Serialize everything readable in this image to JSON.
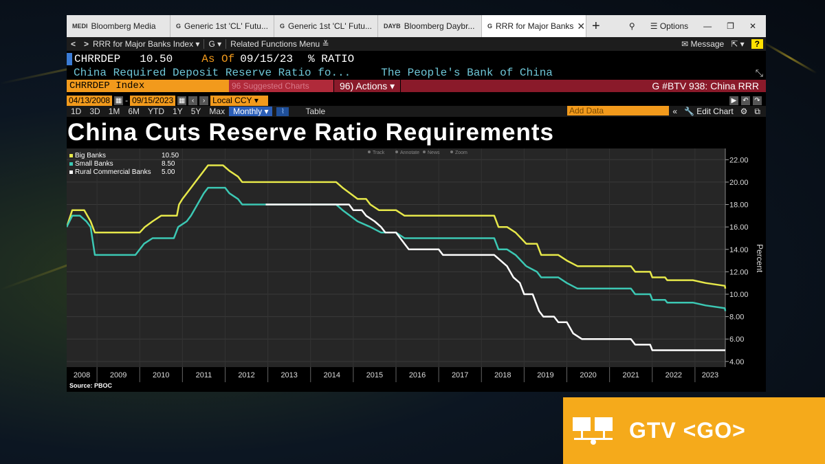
{
  "tabs": [
    {
      "prefix": "MEDI",
      "label": "Bloomberg Media"
    },
    {
      "prefix": "G",
      "label": "Generic 1st 'CL' Futu..."
    },
    {
      "prefix": "G",
      "label": "Generic 1st 'CL' Futu..."
    },
    {
      "prefix": "DAYB",
      "label": "Bloomberg Daybr..."
    },
    {
      "prefix": "G",
      "label": "RRR for Major Banks"
    }
  ],
  "window": {
    "options_label": "Options"
  },
  "toolbar": {
    "security": "RRR for Major Banks Index",
    "g_label": "G",
    "related": "Related Functions Menu",
    "message": "Message",
    "help": "?"
  },
  "quote": {
    "ticker": "CHRRDEP",
    "value": "10.50",
    "asof_label": "As Of",
    "asof_date": "09/15/23",
    "unit": "% RATIO",
    "description": "China Required Deposit Reserve Ratio fo...",
    "source_name": "The People's Bank of China"
  },
  "commandbar": {
    "index": "CHRRDEP Index",
    "related": "96 Suggested Charts",
    "actions": "96) Actions",
    "right": "G #BTV 938: China RRR"
  },
  "daterange": {
    "start": "04/13/2008",
    "end": "09/15/2023",
    "currency": "Local CCY"
  },
  "periods": [
    "1D",
    "3D",
    "1M",
    "6M",
    "YTD",
    "1Y",
    "5Y",
    "Max"
  ],
  "frequency": "Monthly",
  "table_label": "Table",
  "add_data": "Add Data",
  "edit_chart": "Edit Chart",
  "chart_title": "China Cuts Reserve Ratio Requirements",
  "source_note": "Source: PBOC",
  "chart_tools": [
    "Track",
    "Annotate",
    "News",
    "Zoom"
  ],
  "colors": {
    "big": "#e6e84a",
    "small": "#3cc8b4",
    "rural": "#ffffff"
  },
  "chart_data": {
    "type": "line",
    "ylabel": "Percent",
    "ylim": [
      3.5,
      23
    ],
    "xlim": [
      2008.29,
      2023.71
    ],
    "y_ticks": [
      "22.00",
      "20.00",
      "18.00",
      "16.00",
      "14.00",
      "12.00",
      "10.00",
      "8.00",
      "6.00",
      "4.00"
    ],
    "x_ticks": [
      "2008",
      "2009",
      "2010",
      "2011",
      "2012",
      "2013",
      "2014",
      "2015",
      "2016",
      "2017",
      "2018",
      "2019",
      "2020",
      "2021",
      "2022",
      "2023"
    ],
    "legend_position": "top-left",
    "series": [
      {
        "name": "Big Banks",
        "last": "10.50",
        "points": [
          [
            2008.29,
            16.0
          ],
          [
            2008.42,
            17.5
          ],
          [
            2008.7,
            17.5
          ],
          [
            2008.85,
            16.5
          ],
          [
            2008.95,
            15.5
          ],
          [
            2010.0,
            15.5
          ],
          [
            2010.12,
            16.0
          ],
          [
            2010.3,
            16.5
          ],
          [
            2010.5,
            17.0
          ],
          [
            2010.87,
            17.0
          ],
          [
            2010.92,
            18.0
          ],
          [
            2011.0,
            18.5
          ],
          [
            2011.1,
            19.0
          ],
          [
            2011.2,
            19.5
          ],
          [
            2011.3,
            20.0
          ],
          [
            2011.4,
            20.5
          ],
          [
            2011.5,
            21.0
          ],
          [
            2011.6,
            21.5
          ],
          [
            2011.95,
            21.5
          ],
          [
            2012.1,
            21.0
          ],
          [
            2012.3,
            20.5
          ],
          [
            2012.4,
            20.0
          ],
          [
            2014.6,
            20.0
          ],
          [
            2014.75,
            19.5
          ],
          [
            2015.1,
            18.5
          ],
          [
            2015.3,
            18.5
          ],
          [
            2015.4,
            18.0
          ],
          [
            2015.6,
            17.5
          ],
          [
            2016.0,
            17.5
          ],
          [
            2016.2,
            17.0
          ],
          [
            2018.3,
            17.0
          ],
          [
            2018.4,
            16.0
          ],
          [
            2018.6,
            16.0
          ],
          [
            2018.8,
            15.5
          ],
          [
            2019.05,
            14.5
          ],
          [
            2019.3,
            14.5
          ],
          [
            2019.4,
            13.5
          ],
          [
            2019.8,
            13.5
          ],
          [
            2020.0,
            13.0
          ],
          [
            2020.25,
            12.5
          ],
          [
            2020.5,
            12.5
          ],
          [
            2021.5,
            12.5
          ],
          [
            2021.6,
            12.0
          ],
          [
            2021.95,
            12.0
          ],
          [
            2022.0,
            11.5
          ],
          [
            2022.3,
            11.5
          ],
          [
            2022.35,
            11.25
          ],
          [
            2022.95,
            11.25
          ],
          [
            2023.25,
            11.0
          ],
          [
            2023.7,
            10.75
          ],
          [
            2023.71,
            10.5
          ]
        ]
      },
      {
        "name": "Small Banks",
        "last": "8.50",
        "points": [
          [
            2008.29,
            16.0
          ],
          [
            2008.42,
            17.0
          ],
          [
            2008.6,
            17.0
          ],
          [
            2008.75,
            16.5
          ],
          [
            2008.85,
            16.0
          ],
          [
            2008.95,
            13.5
          ],
          [
            2009.9,
            13.5
          ],
          [
            2010.1,
            14.5
          ],
          [
            2010.3,
            15.0
          ],
          [
            2010.8,
            15.0
          ],
          [
            2010.9,
            16.0
          ],
          [
            2011.1,
            16.5
          ],
          [
            2011.2,
            17.0
          ],
          [
            2011.35,
            18.0
          ],
          [
            2011.5,
            19.0
          ],
          [
            2011.6,
            19.5
          ],
          [
            2012.0,
            19.5
          ],
          [
            2012.1,
            19.0
          ],
          [
            2012.3,
            18.5
          ],
          [
            2012.4,
            18.0
          ],
          [
            2014.6,
            18.0
          ],
          [
            2014.75,
            17.5
          ],
          [
            2015.1,
            16.5
          ],
          [
            2015.4,
            16.0
          ],
          [
            2015.65,
            15.5
          ],
          [
            2016.0,
            15.5
          ],
          [
            2016.2,
            15.0
          ],
          [
            2018.3,
            15.0
          ],
          [
            2018.4,
            14.0
          ],
          [
            2018.6,
            14.0
          ],
          [
            2018.8,
            13.5
          ],
          [
            2019.05,
            12.5
          ],
          [
            2019.3,
            12.0
          ],
          [
            2019.4,
            11.5
          ],
          [
            2019.8,
            11.5
          ],
          [
            2020.0,
            11.0
          ],
          [
            2020.25,
            10.5
          ],
          [
            2021.5,
            10.5
          ],
          [
            2021.6,
            10.0
          ],
          [
            2021.95,
            10.0
          ],
          [
            2022.0,
            9.5
          ],
          [
            2022.3,
            9.5
          ],
          [
            2022.35,
            9.25
          ],
          [
            2022.95,
            9.25
          ],
          [
            2023.25,
            9.0
          ],
          [
            2023.7,
            8.75
          ],
          [
            2023.71,
            8.5
          ]
        ]
      },
      {
        "name": "Rural Commercial Banks",
        "last": "5.00",
        "points": [
          [
            2012.95,
            18.0
          ],
          [
            2014.9,
            18.0
          ],
          [
            2015.0,
            17.5
          ],
          [
            2015.2,
            17.5
          ],
          [
            2015.3,
            17.0
          ],
          [
            2015.5,
            16.5
          ],
          [
            2015.65,
            16.0
          ],
          [
            2015.75,
            15.5
          ],
          [
            2016.0,
            15.5
          ],
          [
            2016.2,
            14.5
          ],
          [
            2016.3,
            14.0
          ],
          [
            2017.0,
            14.0
          ],
          [
            2017.1,
            13.5
          ],
          [
            2018.3,
            13.5
          ],
          [
            2018.45,
            13.0
          ],
          [
            2018.6,
            12.5
          ],
          [
            2018.75,
            11.5
          ],
          [
            2018.9,
            11.0
          ],
          [
            2019.0,
            10.0
          ],
          [
            2019.2,
            10.0
          ],
          [
            2019.35,
            8.5
          ],
          [
            2019.45,
            8.0
          ],
          [
            2019.7,
            8.0
          ],
          [
            2019.8,
            7.5
          ],
          [
            2020.0,
            7.5
          ],
          [
            2020.15,
            6.5
          ],
          [
            2020.35,
            6.0
          ],
          [
            2021.05,
            6.0
          ],
          [
            2021.5,
            6.0
          ],
          [
            2021.6,
            5.5
          ],
          [
            2021.95,
            5.5
          ],
          [
            2022.0,
            5.0
          ],
          [
            2023.71,
            5.0
          ]
        ]
      }
    ]
  },
  "gtv": {
    "label": "GTV <GO>"
  }
}
